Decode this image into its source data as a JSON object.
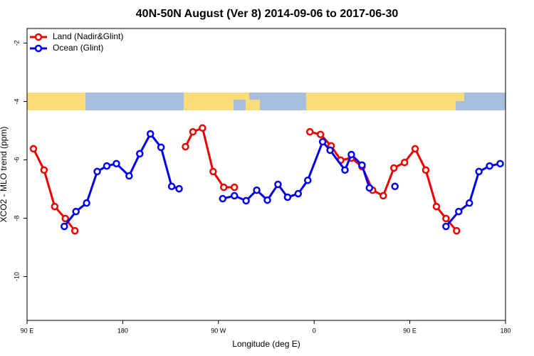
{
  "chart_data": {
    "type": "line",
    "title": "40N-50N August (Ver 8)   2014-09-06 to 2017-06-30",
    "x_label": "Longitude (deg E)",
    "y_label": "XCO2 - MLO trend (ppm)",
    "xlim": [
      90,
      540
    ],
    "ylim": [
      -11.5,
      -1.5
    ],
    "xticks": [
      {
        "value": 90,
        "label": "90 E"
      },
      180,
      {
        "value": 270,
        "label": "90 W"
      },
      {
        "value": 360,
        "label": "0"
      },
      {
        "value": 450,
        "label": "90 E"
      },
      {
        "value": 540,
        "label": "180"
      }
    ],
    "yticks": [
      -10,
      -8,
      -6,
      -4,
      -2
    ],
    "legend_position": "top-left",
    "series": [
      {
        "name": "Land (Nadir&Glint)",
        "color": "#ee0000",
        "x": [
          96,
          106,
          116,
          126,
          135,
          null,
          239,
          246,
          255,
          265,
          275,
          285,
          null,
          356,
          366,
          376,
          385,
          395,
          405,
          415,
          425,
          435,
          445,
          455,
          465,
          475,
          484,
          494
        ],
        "values": [
          -5.62,
          -6.35,
          -7.6,
          -8.01,
          -8.43,
          null,
          -5.55,
          -5.04,
          -4.91,
          -6.4,
          -6.94,
          -6.94,
          null,
          -5.04,
          -5.13,
          -5.52,
          -6.01,
          -5.94,
          -6.23,
          -7.04,
          -7.23,
          -6.28,
          -6.09,
          -5.62,
          -6.35,
          -7.6,
          -8.01,
          -8.43
        ]
      },
      {
        "name": "Ocean (Glint)",
        "color": "#0000ee",
        "x": [
          125,
          136,
          146,
          156,
          165,
          174,
          186,
          196,
          206,
          216,
          226,
          233,
          null,
          274,
          285,
          296,
          306,
          316,
          326,
          335,
          345,
          354,
          368,
          375,
          389,
          395,
          405,
          412,
          null,
          436,
          null,
          484,
          496,
          506,
          515,
          525,
          535
        ],
        "values": [
          -8.28,
          -7.77,
          -7.48,
          -6.4,
          -6.21,
          -6.13,
          -6.55,
          -5.79,
          -5.11,
          -5.57,
          -6.91,
          -6.99,
          null,
          -7.33,
          -7.23,
          -7.4,
          -7.04,
          -7.38,
          -6.84,
          -7.28,
          -7.16,
          -6.7,
          -5.38,
          -5.67,
          -6.35,
          -5.82,
          -6.18,
          -6.96,
          null,
          -6.91,
          null,
          -8.28,
          -7.77,
          -7.48,
          -6.4,
          -6.21,
          -6.13
        ]
      }
    ]
  }
}
